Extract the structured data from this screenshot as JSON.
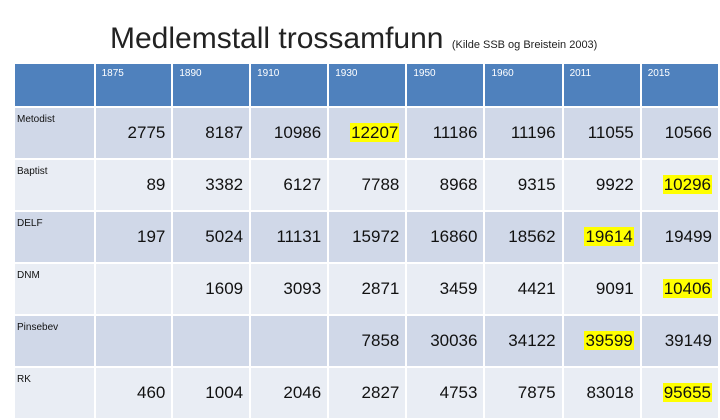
{
  "title": "Medlemstall trossamfunn",
  "source": "(Kilde SSB og Breistein 2003)",
  "table": {
    "columns": [
      "1875",
      "1890",
      "1910",
      "1930",
      "1950",
      "1960",
      "2011",
      "2015"
    ],
    "rows": [
      {
        "label": "Metodist",
        "values": [
          2775,
          8187,
          10986,
          12207,
          11186,
          11196,
          11055,
          10566
        ],
        "highlight": 3
      },
      {
        "label": "Baptist",
        "values": [
          89,
          3382,
          6127,
          7788,
          8968,
          9315,
          9922,
          10296
        ],
        "highlight": 7
      },
      {
        "label": "DELF",
        "values": [
          197,
          5024,
          11131,
          15972,
          16860,
          18562,
          19614,
          19499
        ],
        "highlight": 6
      },
      {
        "label": "DNM",
        "values": [
          null,
          1609,
          3093,
          2871,
          3459,
          4421,
          9091,
          10406
        ],
        "highlight": 7
      },
      {
        "label": "Pinsebev",
        "values": [
          null,
          null,
          null,
          7858,
          30036,
          34122,
          39599,
          39149
        ],
        "highlight": 6
      },
      {
        "label": "RK",
        "values": [
          460,
          1004,
          2046,
          2827,
          4753,
          7875,
          83018,
          95655
        ],
        "highlight": 7
      }
    ]
  }
}
